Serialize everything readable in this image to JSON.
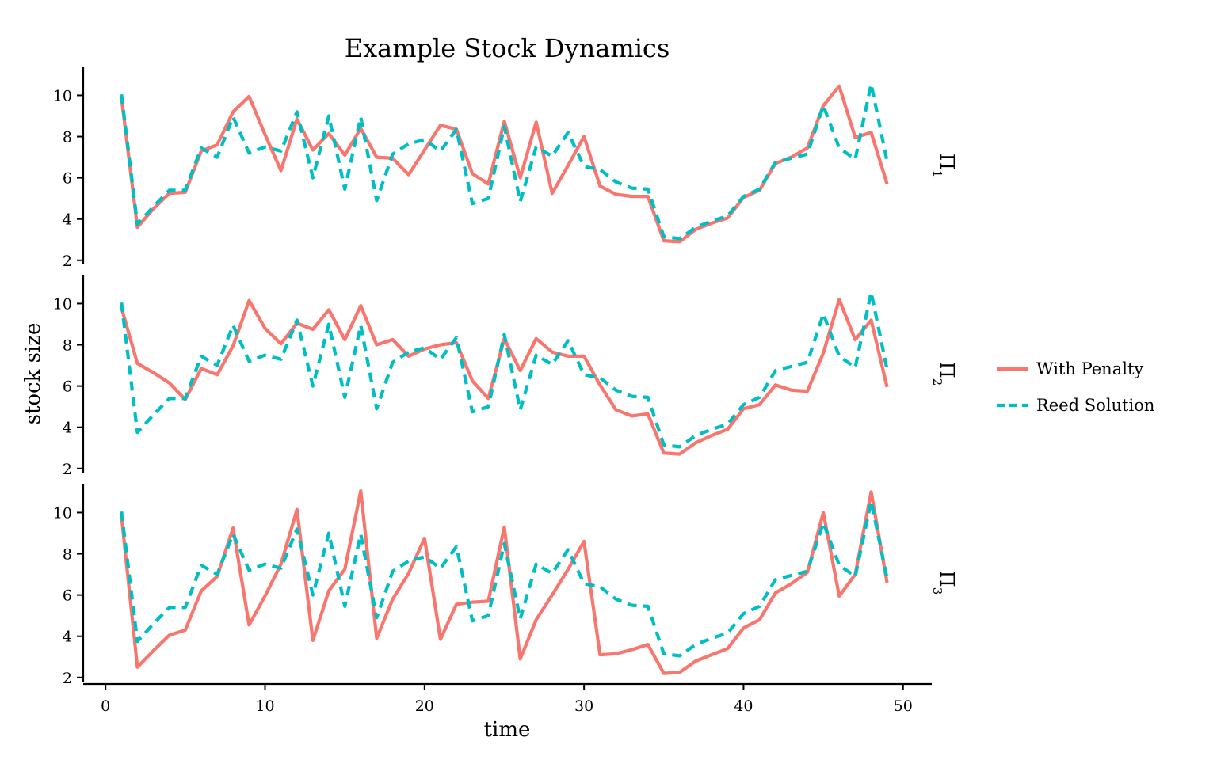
{
  "chart_data": {
    "type": "line",
    "title": "Example Stock Dynamics",
    "xlabel": "time",
    "ylabel": "stock size",
    "xlim": [
      -1.4,
      51.8
    ],
    "ylim": [
      1.8,
      11.4
    ],
    "x_ticks": [
      0,
      10,
      20,
      30,
      40,
      50
    ],
    "y_ticks": [
      2,
      4,
      6,
      8,
      10
    ],
    "grid": false,
    "legend_position": "right",
    "x": [
      1,
      2,
      3,
      4,
      5,
      6,
      7,
      8,
      9,
      10,
      11,
      12,
      13,
      14,
      15,
      16,
      17,
      18,
      19,
      20,
      21,
      22,
      23,
      24,
      25,
      26,
      27,
      28,
      29,
      30,
      31,
      32,
      33,
      34,
      35,
      36,
      37,
      38,
      39,
      40,
      41,
      42,
      43,
      44,
      45,
      46,
      47,
      48,
      49
    ],
    "legend": [
      {
        "name": "With Penalty",
        "color": "#F8766D",
        "dash": "solid"
      },
      {
        "name": "Reed Solution",
        "color": "#00BFC4",
        "dash": "dashed"
      }
    ],
    "panels": [
      {
        "label_main": "Π",
        "label_sub": "1",
        "series": [
          {
            "name": "With Penalty",
            "values": [
              9.9,
              3.6,
              4.5,
              5.25,
              5.3,
              7.3,
              7.6,
              9.2,
              9.95,
              8.1,
              6.35,
              8.85,
              7.35,
              8.15,
              7.1,
              8.4,
              7.0,
              6.95,
              6.15,
              7.35,
              8.55,
              8.35,
              6.2,
              5.7,
              8.75,
              6.0,
              8.7,
              5.25,
              6.6,
              8.0,
              5.6,
              5.2,
              5.1,
              5.1,
              2.95,
              2.9,
              3.5,
              3.8,
              4.05,
              5.05,
              5.4,
              6.7,
              7.0,
              7.45,
              9.5,
              10.45,
              7.95,
              8.2,
              5.7
            ]
          },
          {
            "name": "Reed Solution",
            "values": [
              10.05,
              3.75,
              4.6,
              5.4,
              5.4,
              7.45,
              7.0,
              8.95,
              7.2,
              7.5,
              7.3,
              9.2,
              6.0,
              9.0,
              5.45,
              8.95,
              4.9,
              7.15,
              7.65,
              7.85,
              7.3,
              8.35,
              4.75,
              5.0,
              8.5,
              4.85,
              7.5,
              7.05,
              8.2,
              6.55,
              6.4,
              5.8,
              5.5,
              5.45,
              3.15,
              3.05,
              3.6,
              3.9,
              4.15,
              5.1,
              5.45,
              6.75,
              6.95,
              7.15,
              9.5,
              7.45,
              6.9,
              10.55,
              6.8
            ]
          }
        ]
      },
      {
        "label_main": "Π",
        "label_sub": "2",
        "series": [
          {
            "name": "With Penalty",
            "values": [
              9.8,
              7.1,
              6.65,
              6.15,
              5.35,
              6.85,
              6.55,
              7.95,
              10.15,
              8.8,
              8.05,
              9.05,
              8.75,
              9.7,
              8.25,
              9.9,
              8.0,
              8.25,
              7.45,
              7.8,
              8.0,
              8.1,
              6.25,
              5.4,
              8.3,
              6.75,
              8.3,
              7.65,
              7.45,
              7.45,
              6.05,
              4.85,
              4.55,
              4.65,
              2.75,
              2.7,
              3.25,
              3.6,
              3.9,
              4.9,
              5.1,
              6.05,
              5.8,
              5.75,
              7.6,
              10.2,
              8.25,
              9.2,
              5.95
            ]
          },
          {
            "name": "Reed Solution",
            "values": [
              10.05,
              3.75,
              4.6,
              5.4,
              5.4,
              7.45,
              7.0,
              8.95,
              7.2,
              7.5,
              7.3,
              9.2,
              6.0,
              9.0,
              5.45,
              8.95,
              4.9,
              7.15,
              7.65,
              7.85,
              7.3,
              8.35,
              4.75,
              5.0,
              8.5,
              4.85,
              7.5,
              7.05,
              8.2,
              6.55,
              6.4,
              5.8,
              5.5,
              5.45,
              3.15,
              3.05,
              3.6,
              3.9,
              4.15,
              5.1,
              5.45,
              6.75,
              6.95,
              7.15,
              9.5,
              7.45,
              6.9,
              10.55,
              6.8
            ]
          }
        ]
      },
      {
        "label_main": "Π",
        "label_sub": "3",
        "series": [
          {
            "name": "With Penalty",
            "values": [
              9.85,
              2.5,
              3.3,
              4.05,
              4.3,
              6.2,
              6.9,
              9.25,
              4.55,
              5.95,
              7.5,
              10.15,
              3.8,
              6.2,
              7.25,
              11.05,
              3.9,
              5.8,
              7.05,
              8.75,
              3.85,
              5.55,
              5.65,
              5.7,
              9.3,
              2.9,
              4.8,
              6.0,
              7.25,
              8.6,
              3.1,
              3.15,
              3.35,
              3.6,
              2.2,
              2.25,
              2.8,
              3.1,
              3.4,
              4.4,
              4.8,
              6.1,
              6.55,
              7.1,
              10.0,
              5.95,
              7.0,
              11.0,
              6.6
            ]
          },
          {
            "name": "Reed Solution",
            "values": [
              10.05,
              3.75,
              4.6,
              5.4,
              5.4,
              7.45,
              7.0,
              8.95,
              7.2,
              7.5,
              7.3,
              9.2,
              6.0,
              9.0,
              5.45,
              8.95,
              4.9,
              7.15,
              7.65,
              7.85,
              7.3,
              8.35,
              4.75,
              5.0,
              8.5,
              4.85,
              7.5,
              7.05,
              8.2,
              6.55,
              6.4,
              5.8,
              5.5,
              5.45,
              3.15,
              3.05,
              3.6,
              3.9,
              4.15,
              5.1,
              5.45,
              6.75,
              6.95,
              7.15,
              9.5,
              7.45,
              6.9,
              10.55,
              6.8
            ]
          }
        ]
      }
    ]
  }
}
